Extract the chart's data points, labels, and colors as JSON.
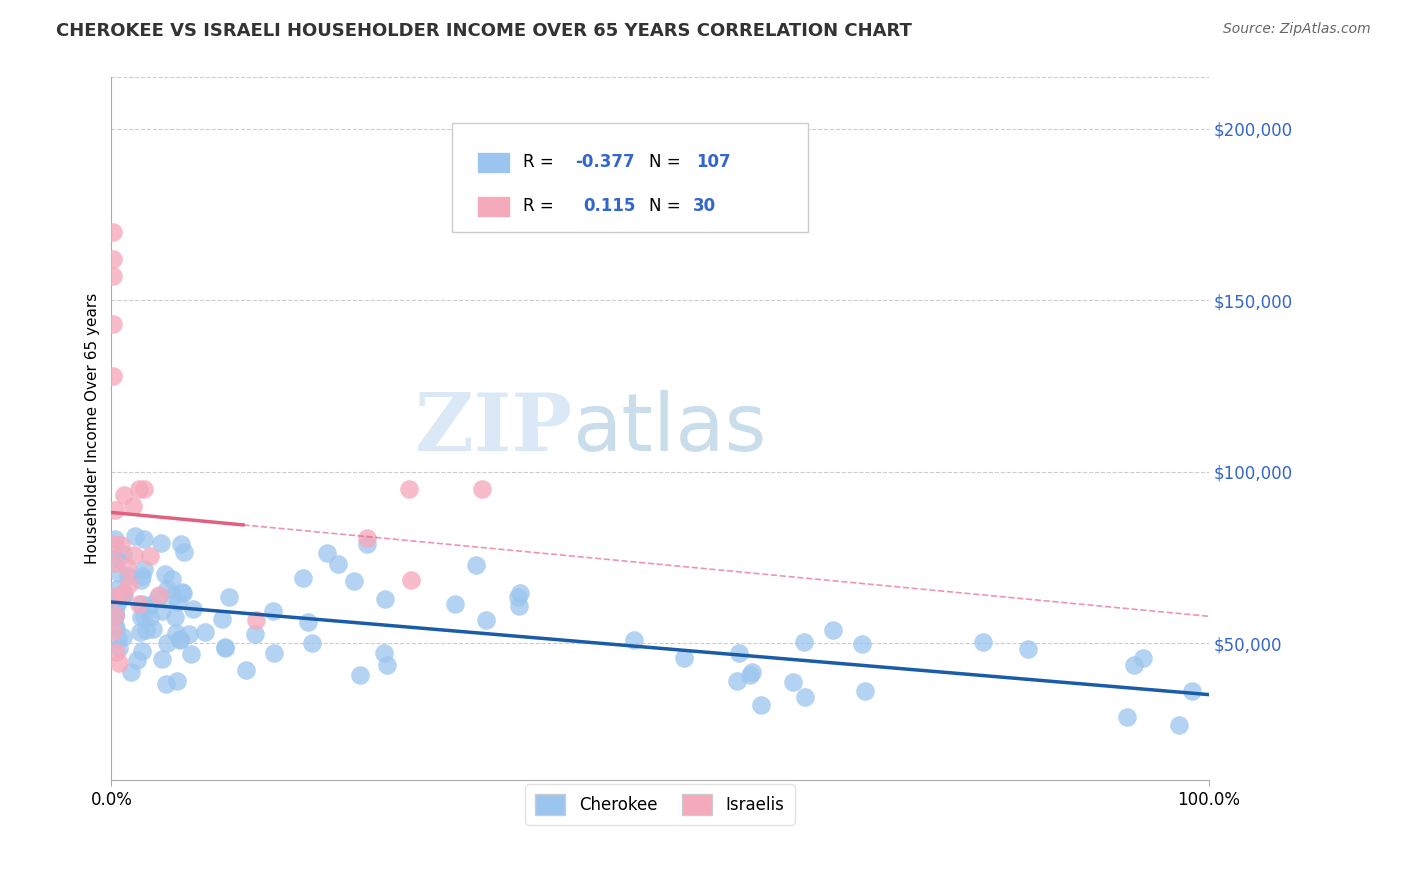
{
  "title": "CHEROKEE VS ISRAELI HOUSEHOLDER INCOME OVER 65 YEARS CORRELATION CHART",
  "source": "Source: ZipAtlas.com",
  "ylabel": "Householder Income Over 65 years",
  "xlim": [
    0,
    100
  ],
  "ylim": [
    10000,
    215000
  ],
  "ytick_vals": [
    50000,
    100000,
    150000,
    200000
  ],
  "ytick_labels": [
    "$50,000",
    "$100,000",
    "$150,000",
    "$200,000"
  ],
  "cherokee_color": "#9BC5EE",
  "israeli_color": "#F5AABC",
  "trend_cherokee_color": "#1A5CA8",
  "trend_israeli_color": "#E06080",
  "legend_cherokee_r": "-0.377",
  "legend_cherokee_n": "107",
  "legend_israeli_r": "0.115",
  "legend_israeli_n": "30",
  "watermark_zip": "ZIP",
  "watermark_atlas": "atlas",
  "background_color": "#FFFFFF",
  "grid_color": "#CCCCCC",
  "title_color": "#333333",
  "source_color": "#666666",
  "ytick_color": "#3366CC",
  "legend_r_color": "#3366CC",
  "legend_n_color": "#3366CC",
  "cherokee_seed": 77,
  "israeli_seed": 55,
  "n_cherokee": 107,
  "n_israeli": 30
}
